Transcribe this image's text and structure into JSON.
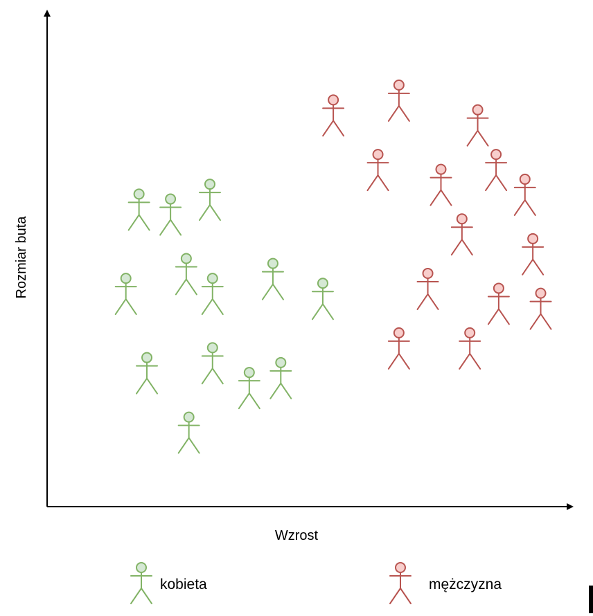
{
  "chart_data": {
    "type": "scatter",
    "title": "",
    "xlabel": "Wzrost",
    "ylabel": "Rozmiar buta",
    "xlim": [
      0,
      100
    ],
    "ylim": [
      0,
      100
    ],
    "grid": false,
    "marker": "stick-figure",
    "legend_placement": "bottom",
    "series": [
      {
        "name": "kobieta",
        "color": "#82b366",
        "fill": "#d5e8d4",
        "points": [
          {
            "x": 17.5,
            "y": 60
          },
          {
            "x": 23.5,
            "y": 59
          },
          {
            "x": 31.0,
            "y": 62
          },
          {
            "x": 15.0,
            "y": 43
          },
          {
            "x": 26.5,
            "y": 47
          },
          {
            "x": 31.5,
            "y": 43
          },
          {
            "x": 43.0,
            "y": 46
          },
          {
            "x": 52.5,
            "y": 42
          },
          {
            "x": 19.0,
            "y": 27
          },
          {
            "x": 31.5,
            "y": 29
          },
          {
            "x": 38.5,
            "y": 24
          },
          {
            "x": 44.5,
            "y": 26
          },
          {
            "x": 27.0,
            "y": 15
          }
        ]
      },
      {
        "name": "mężczyzna",
        "color": "#b85450",
        "fill": "#f8cecc",
        "points": [
          {
            "x": 54.5,
            "y": 79
          },
          {
            "x": 67.0,
            "y": 82
          },
          {
            "x": 63.0,
            "y": 68
          },
          {
            "x": 82.0,
            "y": 77
          },
          {
            "x": 85.5,
            "y": 68
          },
          {
            "x": 75.0,
            "y": 65
          },
          {
            "x": 91.0,
            "y": 63
          },
          {
            "x": 79.0,
            "y": 55
          },
          {
            "x": 92.5,
            "y": 51
          },
          {
            "x": 72.5,
            "y": 44
          },
          {
            "x": 86.0,
            "y": 41
          },
          {
            "x": 94.0,
            "y": 40
          },
          {
            "x": 67.0,
            "y": 32
          },
          {
            "x": 80.5,
            "y": 32
          }
        ]
      }
    ]
  }
}
